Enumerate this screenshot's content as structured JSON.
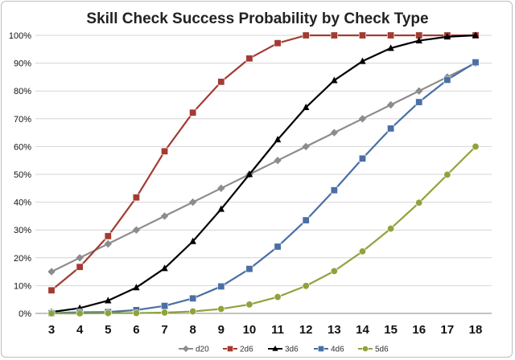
{
  "chart_data": {
    "type": "line",
    "title": "Skill Check Success Probability by Check Type",
    "xlabel": "",
    "ylabel": "",
    "x": [
      3,
      4,
      5,
      6,
      7,
      8,
      9,
      10,
      11,
      12,
      13,
      14,
      15,
      16,
      17,
      18
    ],
    "ylim": [
      0,
      100
    ],
    "yticks": [
      "0%",
      "10%",
      "20%",
      "30%",
      "40%",
      "50%",
      "60%",
      "70%",
      "80%",
      "90%",
      "100%"
    ],
    "grid": "horizontal",
    "legend": "bottom",
    "series": [
      {
        "name": "d20",
        "color": "#8c8c8c",
        "marker": "diamond",
        "values": [
          15,
          20,
          25,
          30,
          35,
          40,
          45,
          50,
          55,
          60,
          65,
          70,
          75,
          80,
          85,
          90
        ]
      },
      {
        "name": "2d6",
        "color": "#a33b33",
        "marker": "square",
        "values": [
          8.3,
          16.7,
          27.8,
          41.7,
          58.3,
          72.2,
          83.3,
          91.7,
          97.2,
          100,
          100,
          100,
          100,
          100,
          100,
          100
        ]
      },
      {
        "name": "3d6",
        "color": "#000000",
        "marker": "triangle",
        "values": [
          0.5,
          1.9,
          4.6,
          9.3,
          16.2,
          25.9,
          37.5,
          50,
          62.5,
          74.1,
          83.8,
          90.7,
          95.4,
          98.1,
          99.5,
          100
        ]
      },
      {
        "name": "4d6",
        "color": "#4a6fa5",
        "marker": "square",
        "values": [
          0.1,
          0.4,
          0.5,
          1.2,
          2.7,
          5.4,
          9.7,
          16,
          24,
          33.5,
          44.3,
          55.7,
          66.5,
          76,
          84,
          90.3
        ]
      },
      {
        "name": "5d6",
        "color": "#8ea33b",
        "marker": "circle",
        "values": [
          0,
          0,
          0.1,
          0.1,
          0.3,
          0.7,
          1.6,
          3.2,
          5.9,
          9.9,
          15.2,
          22.3,
          30.5,
          39.8,
          49.9,
          60
        ]
      }
    ]
  }
}
